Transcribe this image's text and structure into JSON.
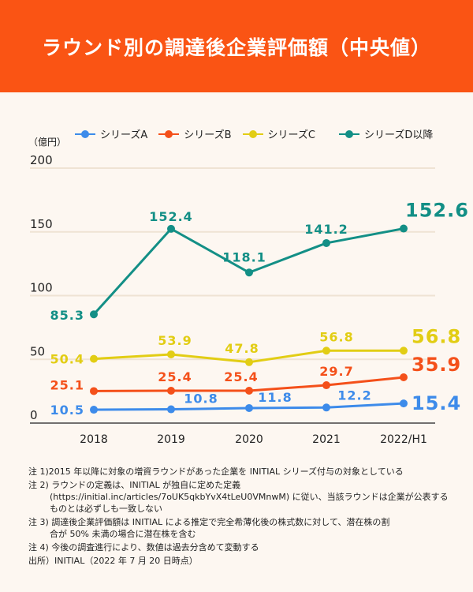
{
  "header": {
    "title": "ラウンド別の調達後企業評価額（中央値）"
  },
  "colors": {
    "header_bg": "#fa5414",
    "series_a": "#3d8bea",
    "series_b": "#f4501a",
    "series_c": "#e2cd14",
    "series_d": "#138f86"
  },
  "chart_data": {
    "type": "line",
    "title": "ラウンド別の調達後企業評価額（中央値）",
    "unit_label": "（億円）",
    "xlabel": "",
    "ylabel": "（億円）",
    "categories": [
      "2018",
      "2019",
      "2020",
      "2021",
      "2022/H1"
    ],
    "ylim": [
      0,
      200
    ],
    "yticks": [
      0,
      50,
      100,
      150,
      200
    ],
    "ytick_labels": [
      "0",
      "50",
      "100",
      "150",
      "200"
    ],
    "grid": true,
    "legend_position": "top",
    "series": [
      {
        "name": "シリーズA",
        "color": "#3d8bea",
        "values": [
          10.5,
          10.8,
          11.8,
          12.2,
          15.4
        ],
        "labels": [
          "10.5",
          "10.8",
          "11.8",
          "12.2",
          "15.4"
        ]
      },
      {
        "name": "シリーズB",
        "color": "#f4501a",
        "values": [
          25.1,
          25.4,
          25.4,
          29.7,
          35.9
        ],
        "labels": [
          "25.1",
          "25.4",
          "25.4",
          "29.7",
          "35.9"
        ]
      },
      {
        "name": "シリーズC",
        "color": "#e2cd14",
        "values": [
          50.4,
          53.9,
          47.8,
          56.8,
          56.8
        ],
        "labels": [
          "50.4",
          "53.9",
          "47.8",
          "56.8",
          "56.8"
        ]
      },
      {
        "name": "シリーズD以降",
        "color": "#138f86",
        "values": [
          85.3,
          152.4,
          118.1,
          141.2,
          152.6
        ],
        "labels": [
          "85.3",
          "152.4",
          "118.1",
          "141.2",
          "152.6"
        ]
      }
    ]
  },
  "notes": [
    {
      "head": "注 1)2015 年以降に対象の増資ラウンドがあった企業を INITIAL シリーズ付与の対象としている",
      "cont": ""
    },
    {
      "head": "注 2) ラウンドの定義は、INITIAL が独自に定めた定義",
      "cont": "(https://initial.inc/articles/7oUK5qkbYvX4tLeU0VMnwM) に従い、当該ラウンドは企業が公表するものとは必ずしも一致しない"
    },
    {
      "head": "注 3) 調達後企業評価額は INITIAL による推定で完全希薄化後の株式数に対して、潜在株の割",
      "cont": "合が 50% 未満の場合に潜在株を含む"
    },
    {
      "head": "注 4) 今後の調査進行により、数値は過去分含めて変動する",
      "cont": ""
    },
    {
      "head": "出所）INITIAL（2022 年 7 月 20 日時点）",
      "cont": ""
    }
  ]
}
